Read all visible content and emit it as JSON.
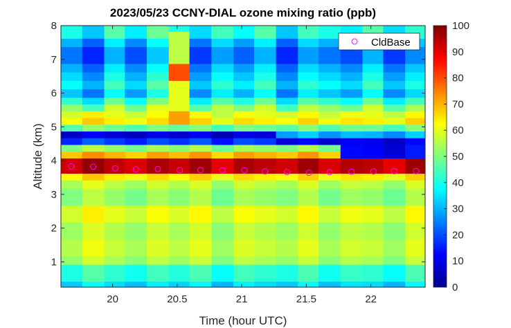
{
  "chart_data": {
    "type": "heatmap",
    "title": "2023/05/23 CCNY-DIAL ozone mixing ratio (ppb)",
    "xlabel": "Time (hour UTC)",
    "ylabel": "Altitude (km)",
    "xlim": [
      19.6,
      22.42
    ],
    "ylim": [
      0.25,
      8.0
    ],
    "xticks": [
      20,
      20.5,
      21,
      21.5,
      22
    ],
    "xtick_labels": [
      "20",
      "20.5",
      "21",
      "21.5",
      "22"
    ],
    "yticks": [
      1,
      2,
      3,
      4,
      5,
      6,
      7,
      8
    ],
    "ytick_labels": [
      "1",
      "2",
      "3",
      "4",
      "5",
      "6",
      "7",
      "8"
    ],
    "colorbar": {
      "min": 0,
      "max": 100,
      "colormap": "jet",
      "ticks": [
        0,
        10,
        20,
        30,
        40,
        50,
        60,
        70,
        80,
        90,
        100
      ],
      "tick_labels": [
        "0",
        "10",
        "20",
        "30",
        "40",
        "50",
        "60",
        "70",
        "80",
        "90",
        "100"
      ]
    },
    "legend": {
      "location": "top-right",
      "entries": [
        "CldBase"
      ],
      "marker": "circle",
      "marker_color": "#ff00ff"
    },
    "time_columns": [
      19.68,
      19.85,
      20.02,
      20.18,
      20.35,
      20.52,
      20.68,
      20.85,
      21.02,
      21.18,
      21.35,
      21.52,
      21.68,
      21.85,
      22.02,
      22.18,
      22.35
    ],
    "column_width_hours": 0.17,
    "altitudes_km": [
      0.3,
      0.55,
      0.8,
      1.05,
      1.3,
      1.55,
      1.8,
      2.05,
      2.3,
      2.55,
      2.8,
      3.05,
      3.3,
      3.55,
      3.75,
      3.9,
      4.05,
      4.2,
      4.4,
      4.6,
      4.8,
      5.0,
      5.2,
      5.4,
      5.6,
      5.8,
      6.0,
      6.25,
      6.5,
      6.75,
      7.0,
      7.25,
      7.5,
      7.75,
      7.95
    ],
    "altitude_step_km": 0.25,
    "cloud_base": {
      "name": "CldBase",
      "x": [
        19.68,
        19.85,
        20.02,
        20.18,
        20.35,
        20.52,
        20.68,
        20.85,
        21.02,
        21.18,
        21.35,
        21.52,
        21.68,
        21.85,
        22.02,
        22.18,
        22.35
      ],
      "y": [
        3.83,
        3.82,
        3.77,
        3.74,
        3.75,
        3.72,
        3.72,
        3.71,
        3.71,
        3.68,
        3.66,
        3.64,
        3.66,
        3.67,
        3.68,
        3.69,
        3.69
      ]
    }
  }
}
